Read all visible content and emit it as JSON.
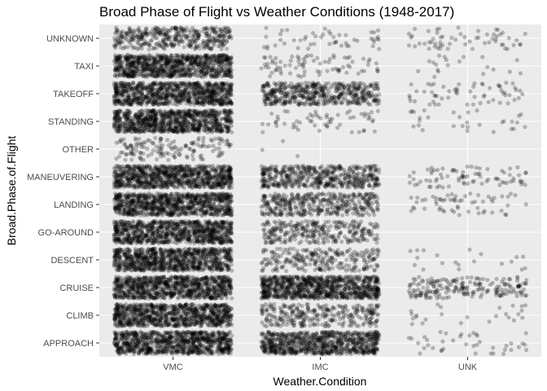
{
  "chart_data": {
    "type": "scatter",
    "title": "Broad Phase of Flight vs Weather Conditions (1948-2017)",
    "xlabel": "Weather.Condition",
    "ylabel": "Broad.Phase.of.Flight",
    "x_categories": [
      "VMC",
      "IMC",
      "UNK"
    ],
    "y_categories": [
      "APPROACH",
      "CLIMB",
      "CRUISE",
      "DESCENT",
      "GO-AROUND",
      "LANDING",
      "MANEUVERING",
      "OTHER",
      "STANDING",
      "TAKEOFF",
      "TAXI",
      "UNKNOWN"
    ],
    "jitter": true,
    "point_alpha": 0.25,
    "point_color": "#000000",
    "panel_background": "#ebebeb",
    "grid": true,
    "legend": "none",
    "approx_point_counts": [
      {
        "phase": "APPROACH",
        "VMC": 2500,
        "IMC": 800,
        "UNK": 40
      },
      {
        "phase": "CLIMB",
        "VMC": 2000,
        "IMC": 300,
        "UNK": 25
      },
      {
        "phase": "CRUISE",
        "VMC": 3000,
        "IMC": 1200,
        "UNK": 200
      },
      {
        "phase": "DESCENT",
        "VMC": 1500,
        "IMC": 250,
        "UNK": 20
      },
      {
        "phase": "GO-AROUND",
        "VMC": 1200,
        "IMC": 300,
        "UNK": 0
      },
      {
        "phase": "LANDING",
        "VMC": 3000,
        "IMC": 400,
        "UNK": 60
      },
      {
        "phase": "MANEUVERING",
        "VMC": 3000,
        "IMC": 500,
        "UNK": 80
      },
      {
        "phase": "OTHER",
        "VMC": 150,
        "IMC": 3,
        "UNK": 0
      },
      {
        "phase": "STANDING",
        "VMC": 900,
        "IMC": 60,
        "UNK": 30
      },
      {
        "phase": "TAKEOFF",
        "VMC": 3000,
        "IMC": 500,
        "UNK": 60
      },
      {
        "phase": "TAXI",
        "VMC": 2500,
        "IMC": 80,
        "UNK": 20
      },
      {
        "phase": "UNKNOWN",
        "VMC": 400,
        "IMC": 50,
        "UNK": 60
      }
    ]
  }
}
